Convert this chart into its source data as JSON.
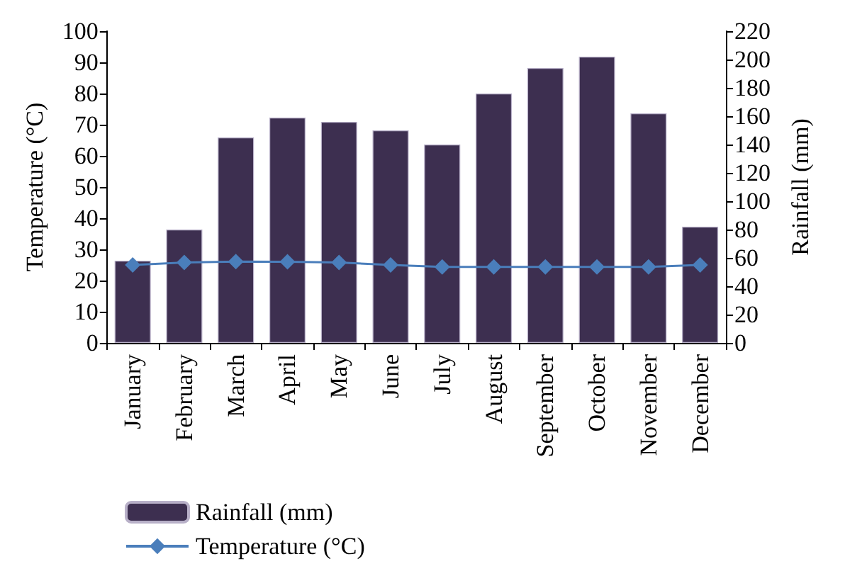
{
  "chart_data": {
    "type": "bar",
    "categories": [
      "January",
      "February",
      "March",
      "April",
      "May",
      "June",
      "July",
      "August",
      "September",
      "October",
      "November",
      "December"
    ],
    "series": [
      {
        "name": "Rainfall (mm)",
        "axis": "y2",
        "color": "#3d2f50",
        "values": [
          58,
          80,
          145,
          159,
          156,
          150,
          140,
          176,
          194,
          202,
          162,
          82
        ]
      },
      {
        "name": "Temperature (°C)",
        "type": "line",
        "axis": "y",
        "color": "#4a7ebb",
        "marker": "diamond",
        "values": [
          25.0,
          25.8,
          26.1,
          26.0,
          25.8,
          25.0,
          24.4,
          24.4,
          24.4,
          24.4,
          24.4,
          25.0
        ]
      }
    ],
    "ylabel": "Temperature (°C)",
    "y2label": "Rainfall (mm)",
    "ylim": [
      0,
      100
    ],
    "yticks": [
      0,
      10,
      20,
      30,
      40,
      50,
      60,
      70,
      80,
      90,
      100
    ],
    "y2lim": [
      0,
      220
    ],
    "y2ticks": [
      0,
      20,
      40,
      60,
      80,
      100,
      120,
      140,
      160,
      180,
      200,
      220
    ],
    "grid": false,
    "legend": "bottom left"
  }
}
